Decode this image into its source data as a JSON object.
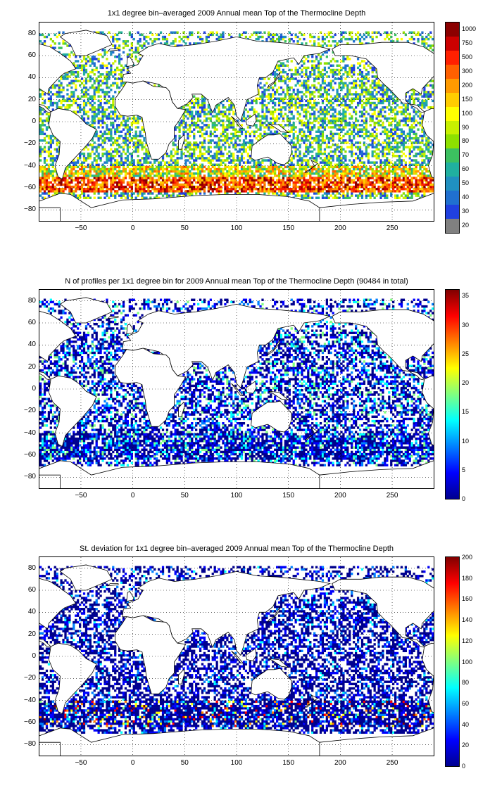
{
  "panels": [
    {
      "id": "mean",
      "title": "1x1 degree bin–averaged 2009 Annual mean Top of the Thermocline Depth",
      "lat_ticks": [
        "80",
        "60",
        "40",
        "20",
        "0",
        "−20",
        "−40",
        "−60",
        "−80"
      ],
      "lon_ticks": [
        "−50",
        "0",
        "50",
        "100",
        "150",
        "200",
        "250"
      ],
      "colorbar": {
        "type": "categorical",
        "labels": [
          "1000",
          "750",
          "500",
          "300",
          "200",
          "150",
          "100",
          "90",
          "80",
          "70",
          "60",
          "50",
          "40",
          "30",
          "20"
        ],
        "colors": [
          "#8b0000",
          "#cc0000",
          "#ff2000",
          "#ff6000",
          "#ff9a00",
          "#ffcc00",
          "#ffff00",
          "#c8f000",
          "#8ee000",
          "#3cc060",
          "#20b0a0",
          "#2090c0",
          "#2070d0",
          "#2040e0",
          "#808080"
        ]
      }
    },
    {
      "id": "count",
      "title": "N of profiles per 1x1 degree bin for 2009 Annual mean Top of the Thermocline Depth  (90484 in total)",
      "lat_ticks": [
        "80",
        "60",
        "40",
        "20",
        "0",
        "−20",
        "−40",
        "−60",
        "−80"
      ],
      "lon_ticks": [
        "−50",
        "0",
        "50",
        "100",
        "150",
        "200",
        "250"
      ],
      "colorbar": {
        "type": "continuous",
        "min": 0,
        "max": 36,
        "labels": [
          "35",
          "30",
          "25",
          "20",
          "15",
          "10",
          "5",
          "0"
        ],
        "label_values": [
          35,
          30,
          25,
          20,
          15,
          10,
          5,
          0
        ]
      }
    },
    {
      "id": "std",
      "title": "St. deviation for 1x1 degree bin–averaged 2009 Annual mean Top of the Thermocline Depth",
      "lat_ticks": [
        "80",
        "60",
        "40",
        "20",
        "0",
        "−20",
        "−40",
        "−60",
        "−80"
      ],
      "lon_ticks": [
        "−50",
        "0",
        "50",
        "100",
        "150",
        "200",
        "250"
      ],
      "colorbar": {
        "type": "continuous",
        "min": 0,
        "max": 200,
        "labels": [
          "200",
          "180",
          "160",
          "140",
          "120",
          "100",
          "80",
          "60",
          "40",
          "20",
          "0"
        ],
        "label_values": [
          200,
          180,
          160,
          140,
          120,
          100,
          80,
          60,
          40,
          20,
          0
        ]
      }
    }
  ],
  "map_extent": {
    "lon": [
      -90,
      290
    ],
    "lat": [
      -90,
      90
    ]
  },
  "grid": "dotted",
  "jet_colors": [
    "#00008f",
    "#0000ff",
    "#0080ff",
    "#00ffff",
    "#80ff80",
    "#ffff00",
    "#ff8000",
    "#ff0000",
    "#800000"
  ]
}
